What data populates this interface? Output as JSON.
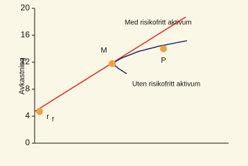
{
  "chart_data": {
    "type": "line",
    "ylabel": "Avkastning",
    "xlim": [
      0,
      28
    ],
    "ylim": [
      0,
      20
    ],
    "yticks": [
      0,
      4,
      8,
      12,
      16,
      20
    ],
    "series": [
      {
        "name": "Med risikofritt aktivum",
        "color": "#e8201f",
        "x": [
          0,
          21.8
        ],
        "values": [
          4.7,
          18.7
        ]
      },
      {
        "name": "Uten risikofritt aktivum",
        "color": "#1f2a6b",
        "x": [
          13.3,
          12.2,
          11.2,
          12.5,
          15,
          18,
          22
        ],
        "values": [
          10.3,
          11.0,
          11.8,
          12.6,
          13.6,
          14.4,
          15.2
        ]
      }
    ],
    "points": {
      "color": "#f5a03a",
      "x": [
        0.7,
        11.2,
        18.6
      ],
      "values": [
        4.7,
        11.8,
        14.0
      ],
      "labels": [
        "r",
        "M",
        "P"
      ],
      "subscript": "f"
    }
  }
}
